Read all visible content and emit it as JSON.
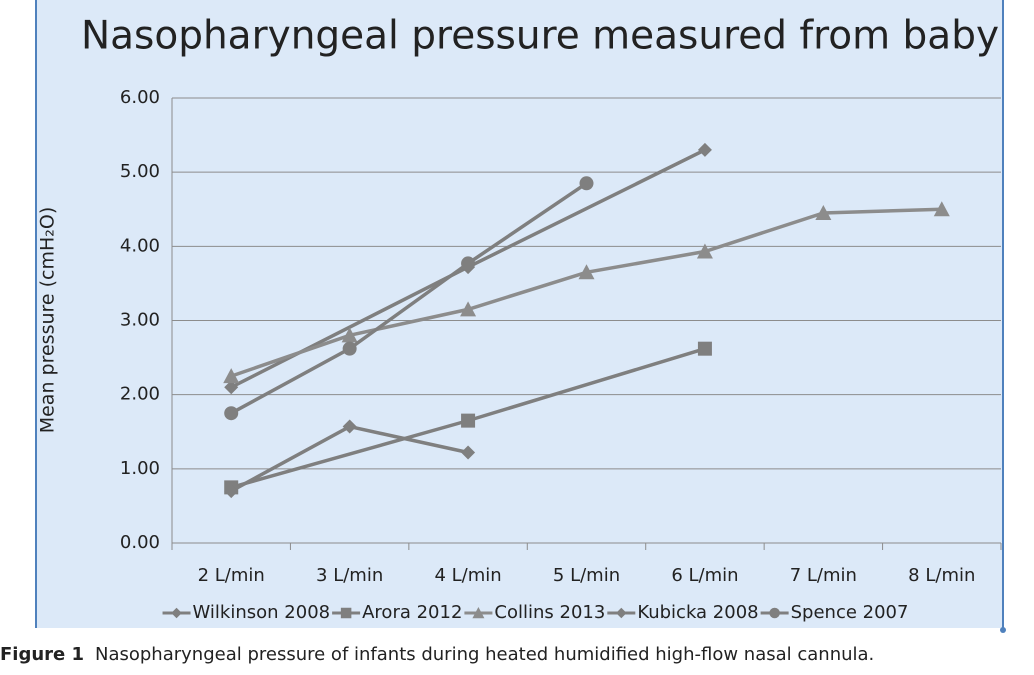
{
  "chart_data": {
    "type": "line",
    "title": "Nasopharyngeal pressure measured from baby",
    "y_label": "Mean pressure (cmH₂O)",
    "categories": [
      "2 L/min",
      "3 L/min",
      "4 L/min",
      "5 L/min",
      "6 L/min",
      "7 L/min",
      "8 L/min"
    ],
    "ylim": [
      0,
      6
    ],
    "yticks": [
      {
        "value": 0,
        "label": "0.00"
      },
      {
        "value": 1,
        "label": "1.00"
      },
      {
        "value": 2,
        "label": "2.00"
      },
      {
        "value": 3,
        "label": "3.00"
      },
      {
        "value": 4,
        "label": "4.00"
      },
      {
        "value": 5,
        "label": "5.00"
      },
      {
        "value": 6,
        "label": "6.00"
      }
    ],
    "grid": true,
    "span_gaps": true,
    "legend": "bottom",
    "series": [
      {
        "name": "Wilkinson 2008",
        "color": "#7f7f7f",
        "marker": "diamond",
        "values": [
          2.1,
          null,
          3.72,
          null,
          5.3,
          null,
          null
        ]
      },
      {
        "name": "Arora 2012",
        "color": "#7f7f7f",
        "marker": "square",
        "values": [
          0.75,
          null,
          1.65,
          null,
          2.62,
          null,
          null
        ]
      },
      {
        "name": "Collins 2013",
        "color": "#8c8c8c",
        "marker": "triangle",
        "values": [
          2.25,
          2.8,
          3.15,
          3.65,
          3.93,
          4.45,
          4.5
        ]
      },
      {
        "name": "Kubicka 2008",
        "color": "#7f7f7f",
        "marker": "diamond",
        "values": [
          0.7,
          1.57,
          1.22,
          null,
          null,
          null,
          null
        ]
      },
      {
        "name": "Spence 2007",
        "color": "#7f7f7f",
        "marker": "circle",
        "values": [
          1.75,
          2.62,
          3.77,
          4.85,
          null,
          null,
          null
        ]
      }
    ]
  },
  "caption": {
    "label": "Figure 1",
    "text": "Nasopharyngeal pressure of infants during heated humidified high-flow nasal cannula."
  }
}
